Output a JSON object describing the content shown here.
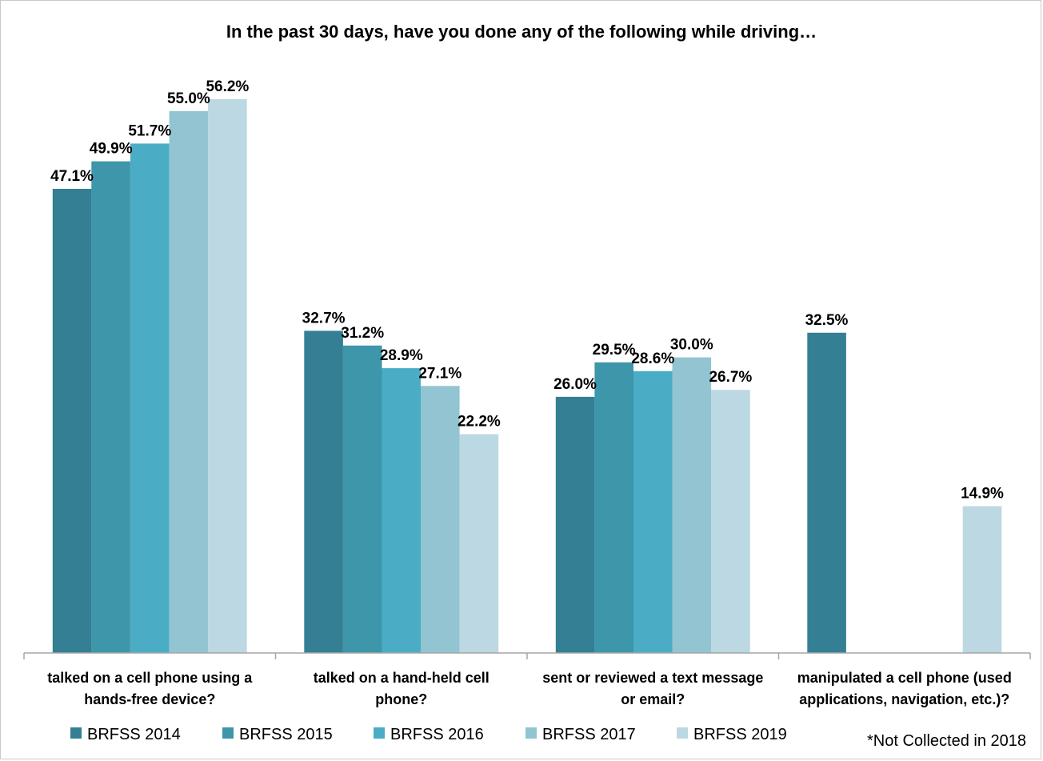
{
  "chart_data": {
    "type": "bar",
    "title": "In the past 30 days, have you done any of the following while driving…",
    "categories": [
      [
        "talked on a cell phone using a",
        "hands-free device?"
      ],
      [
        "talked on a hand-held cell",
        "phone?"
      ],
      [
        "sent or reviewed a text message",
        "or email?"
      ],
      [
        "manipulated a cell phone (used",
        "applications, navigation, etc.)?"
      ]
    ],
    "series": [
      {
        "name": "BRFSS 2014",
        "color": "#347f93",
        "values": [
          47.1,
          32.7,
          26.0,
          32.5
        ]
      },
      {
        "name": "BRFSS 2015",
        "color": "#3d96aa",
        "values": [
          49.9,
          31.2,
          29.5,
          null
        ]
      },
      {
        "name": "BRFSS 2016",
        "color": "#4aadc5",
        "values": [
          51.7,
          28.9,
          28.6,
          null
        ]
      },
      {
        "name": "BRFSS 2017",
        "color": "#93c4d2",
        "values": [
          55.0,
          27.1,
          30.0,
          null
        ]
      },
      {
        "name": "BRFSS 2019",
        "color": "#bcd8e2",
        "values": [
          56.2,
          22.2,
          26.7,
          14.9
        ]
      }
    ],
    "value_suffix": "%",
    "value_decimals": 1,
    "ylim": [
      0,
      60
    ],
    "grid": false,
    "legend_position": "bottom",
    "note": "*Not Collected in 2018"
  }
}
